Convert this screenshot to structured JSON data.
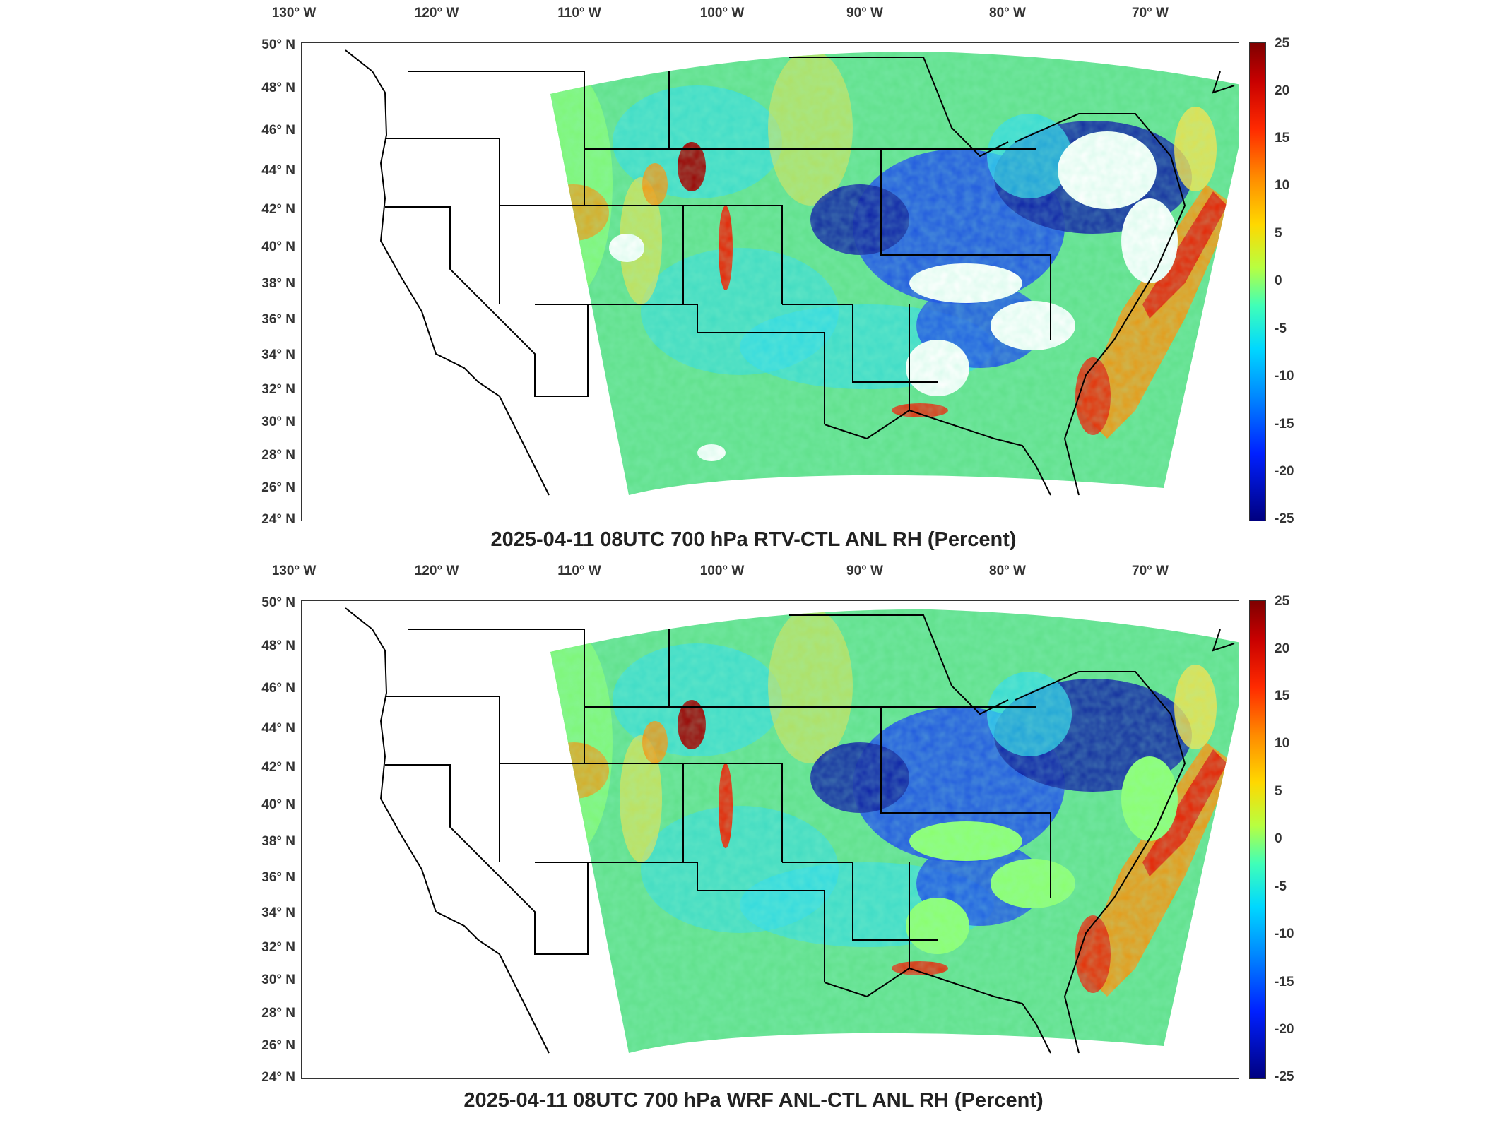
{
  "panels": [
    {
      "title": "2025-04-11 08UTC 700 hPa RTV-CTL ANL RH (Percent)",
      "lon_labels": [
        "130° W",
        "120° W",
        "110° W",
        "100° W",
        "90° W",
        "80° W",
        "70° W"
      ],
      "lat_labels": [
        "50° N",
        "48° N",
        "46° N",
        "44° N",
        "42° N",
        "40° N",
        "38° N",
        "36° N",
        "34° N",
        "32° N",
        "30° N",
        "28° N",
        "26° N",
        "24° N"
      ],
      "colorbar_ticks": [
        "25",
        "20",
        "15",
        "10",
        "5",
        "0",
        "-5",
        "-10",
        "-15",
        "-20",
        "-25"
      ],
      "missing_regions_white": true
    },
    {
      "title": "2025-04-11 08UTC 700 hPa WRF ANL-CTL ANL RH (Percent)",
      "lon_labels": [
        "130° W",
        "120° W",
        "110° W",
        "100° W",
        "90° W",
        "80° W",
        "70° W"
      ],
      "lat_labels": [
        "50° N",
        "48° N",
        "46° N",
        "44° N",
        "42° N",
        "40° N",
        "38° N",
        "36° N",
        "34° N",
        "32° N",
        "30° N",
        "28° N",
        "26° N",
        "24° N"
      ],
      "colorbar_ticks": [
        "25",
        "20",
        "15",
        "10",
        "5",
        "0",
        "-5",
        "-10",
        "-15",
        "-20",
        "-25"
      ],
      "missing_regions_white": false
    }
  ],
  "colors": {
    "field_base": "#5fe08a",
    "field_light": "#8cff6e",
    "cyan": "#28d8f0",
    "blue": "#1848e8",
    "dark_blue": "#0a1aa0",
    "yellow": "#ffe040",
    "orange": "#ff8c00",
    "red": "#e82000",
    "dark_red": "#9a0000",
    "coast": "#000000"
  }
}
